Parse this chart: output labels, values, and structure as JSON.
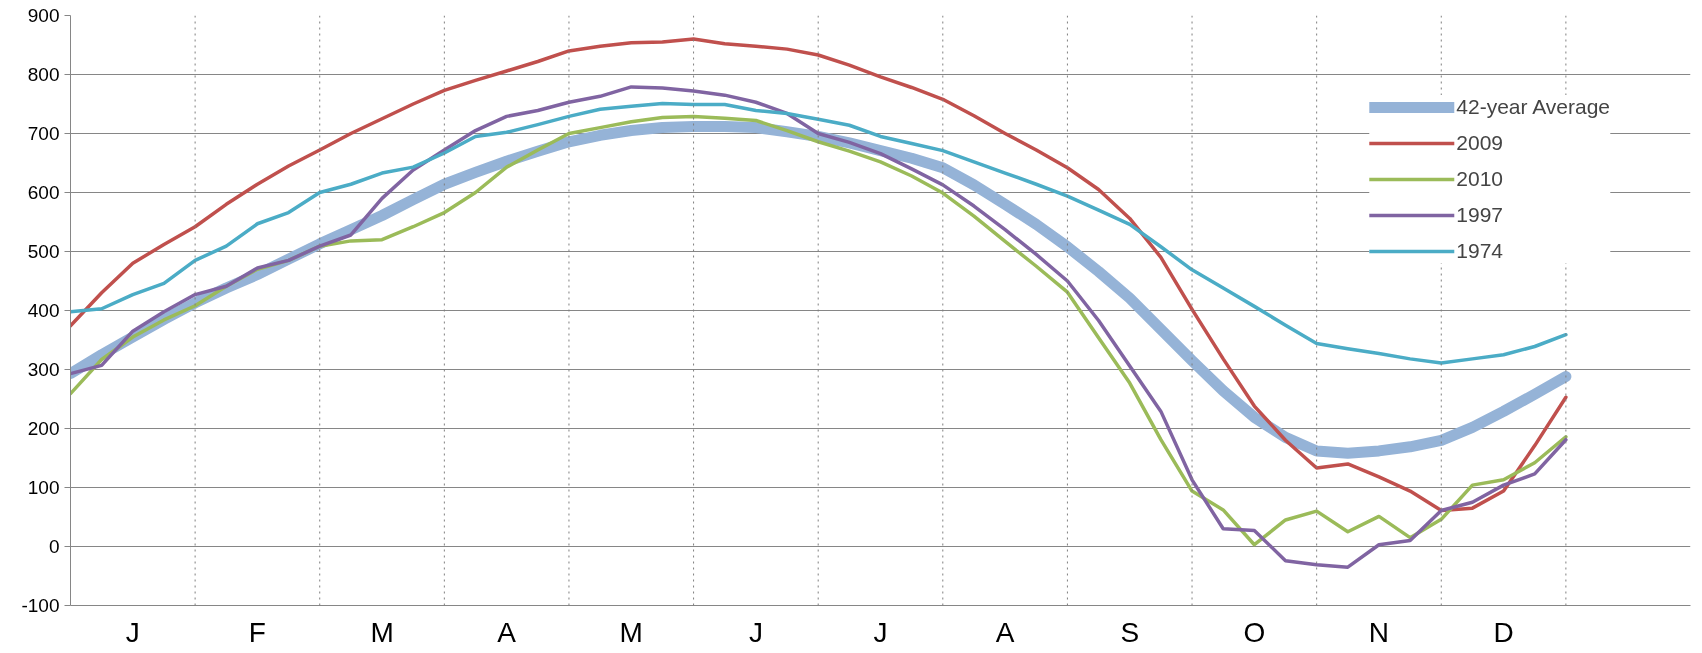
{
  "chart_data": {
    "type": "line",
    "categories": [
      null,
      null,
      "J",
      null,
      null,
      null,
      "F",
      null,
      null,
      null,
      "M",
      null,
      null,
      null,
      "A",
      null,
      null,
      null,
      "M",
      null,
      null,
      null,
      "J",
      null,
      null,
      null,
      "J",
      null,
      null,
      null,
      "A",
      null,
      null,
      null,
      "S",
      null,
      null,
      null,
      "O",
      null,
      null,
      null,
      "N",
      null,
      null,
      null,
      "D",
      null,
      null
    ],
    "ylim": [
      -100,
      900
    ],
    "yticks": [
      -100,
      0,
      100,
      200,
      300,
      400,
      500,
      600,
      700,
      800,
      900
    ],
    "grid": true,
    "legend": "top right",
    "marker": "none",
    "line_style": "solid",
    "series": [
      {
        "name": "42-year Average",
        "color": "#95b3d7",
        "values": [
          293,
          325,
          355,
          385,
          413,
          438,
          461,
          487,
          513,
          537,
          561,
          588,
          614,
          634,
          653,
          670,
          686,
          697,
          705,
          710,
          712,
          712,
          710,
          703,
          695,
          684,
          671,
          658,
          642,
          613,
          580,
          546,
          508,
          466,
          421,
          368,
          315,
          264,
          219,
          185,
          162,
          158,
          162,
          169,
          180,
          202,
          229,
          258,
          288
        ]
      },
      {
        "name": "2009",
        "color": "#c0504d",
        "values": [
          374,
          430,
          480,
          512,
          542,
          580,
          614,
          645,
          672,
          700,
          725,
          750,
          773,
          790,
          806,
          822,
          840,
          848,
          854,
          855,
          860,
          852,
          848,
          843,
          833,
          816,
          796,
          778,
          758,
          730,
          700,
          672,
          642,
          605,
          556,
          490,
          402,
          318,
          238,
          180,
          133,
          140,
          118,
          94,
          61,
          65,
          94,
          171,
          253
        ]
      },
      {
        "name": "2010",
        "color": "#9bbb59",
        "values": [
          259,
          317,
          355,
          384,
          408,
          441,
          470,
          485,
          509,
          518,
          520,
          542,
          566,
          600,
          643,
          672,
          700,
          710,
          720,
          727,
          729,
          726,
          722,
          705,
          686,
          670,
          652,
          628,
          599,
          560,
          517,
          475,
          431,
          354,
          277,
          181,
          94,
          62,
          3,
          45,
          60,
          25,
          51,
          15,
          46,
          104,
          113,
          142,
          186
        ]
      },
      {
        "name": "1997",
        "color": "#8064a2",
        "values": [
          293,
          307,
          365,
          398,
          427,
          441,
          472,
          485,
          509,
          528,
          590,
          638,
          672,
          705,
          729,
          739,
          753,
          763,
          779,
          777,
          772,
          765,
          753,
          734,
          700,
          685,
          666,
          640,
          613,
          577,
          537,
          495,
          450,
          383,
          306,
          229,
          113,
          30,
          27,
          -24,
          -31,
          -35,
          3,
          10,
          61,
          75,
          104,
          123,
          181
        ]
      },
      {
        "name": "1974",
        "color": "#4bacc6",
        "values": [
          398,
          403,
          427,
          446,
          485,
          509,
          547,
          566,
          600,
          614,
          633,
          643,
          667,
          695,
          702,
          715,
          729,
          741,
          746,
          751,
          749,
          749,
          739,
          734,
          724,
          714,
          695,
          683,
          671,
          652,
          633,
          614,
          594,
          570,
          546,
          508,
          469,
          438,
          407,
          375,
          344,
          335,
          327,
          318,
          311,
          318,
          325,
          339,
          359
        ]
      }
    ]
  }
}
